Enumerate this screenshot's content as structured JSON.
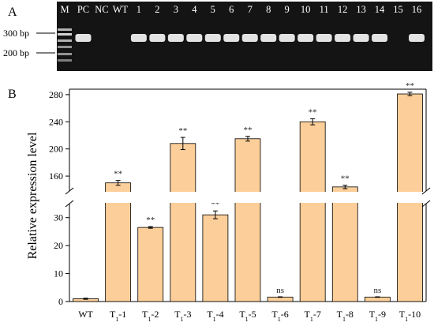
{
  "panel_a": {
    "letter": "A",
    "lane_labels": [
      "M",
      "PC",
      "NC",
      "WT",
      "1",
      "2",
      "3",
      "4",
      "5",
      "6",
      "7",
      "8",
      "9",
      "10",
      "11",
      "12",
      "13",
      "14",
      "15",
      "16"
    ],
    "lanes_with_band": [
      "PC",
      "1",
      "2",
      "3",
      "4",
      "5",
      "6",
      "7",
      "8",
      "9",
      "10",
      "11",
      "12",
      "13",
      "14",
      "16"
    ],
    "marker_labels": [
      "300 bp",
      "200 bp"
    ]
  },
  "chart_data": {
    "type": "bar",
    "panel_letter": "B",
    "categories": [
      {
        "main": "WT",
        "sub": "",
        "suffix": ""
      },
      {
        "main": "T",
        "sub": "1",
        "suffix": "-1"
      },
      {
        "main": "T",
        "sub": "1",
        "suffix": "-2"
      },
      {
        "main": "T",
        "sub": "1",
        "suffix": "-3"
      },
      {
        "main": "T",
        "sub": "1",
        "suffix": "-4"
      },
      {
        "main": "T",
        "sub": "1",
        "suffix": "-5"
      },
      {
        "main": "T",
        "sub": "1",
        "suffix": "-6"
      },
      {
        "main": "T",
        "sub": "1",
        "suffix": "-7"
      },
      {
        "main": "T",
        "sub": "1",
        "suffix": "-8"
      },
      {
        "main": "T",
        "sub": "1",
        "suffix": "-9"
      },
      {
        "main": "T",
        "sub": "1",
        "suffix": "-10"
      }
    ],
    "values": [
      1,
      150,
      26.5,
      208,
      31,
      215,
      1.6,
      240,
      144,
      1.6,
      281
    ],
    "errors": [
      0.2,
      3.5,
      0.3,
      9,
      1.4,
      3.5,
      0.1,
      4.5,
      2.5,
      0.1,
      2.5
    ],
    "significance": [
      "",
      "**",
      "**",
      "**",
      "**",
      "**",
      "ns",
      "**",
      "**",
      "ns",
      "**"
    ],
    "ylabel": "Relative expression level",
    "broken_axis": true,
    "lower_segment": {
      "ylim": [
        0,
        35
      ],
      "ticks": [
        0,
        10,
        20,
        30
      ]
    },
    "upper_segment": {
      "ylim": [
        138,
        288
      ],
      "ticks": [
        160,
        200,
        240,
        280
      ]
    },
    "colors": {
      "bar_fill": "#fccf9a",
      "bar_stroke": "#000000",
      "gel_background": "#141414",
      "gel_band": "#f5f5f5"
    }
  }
}
